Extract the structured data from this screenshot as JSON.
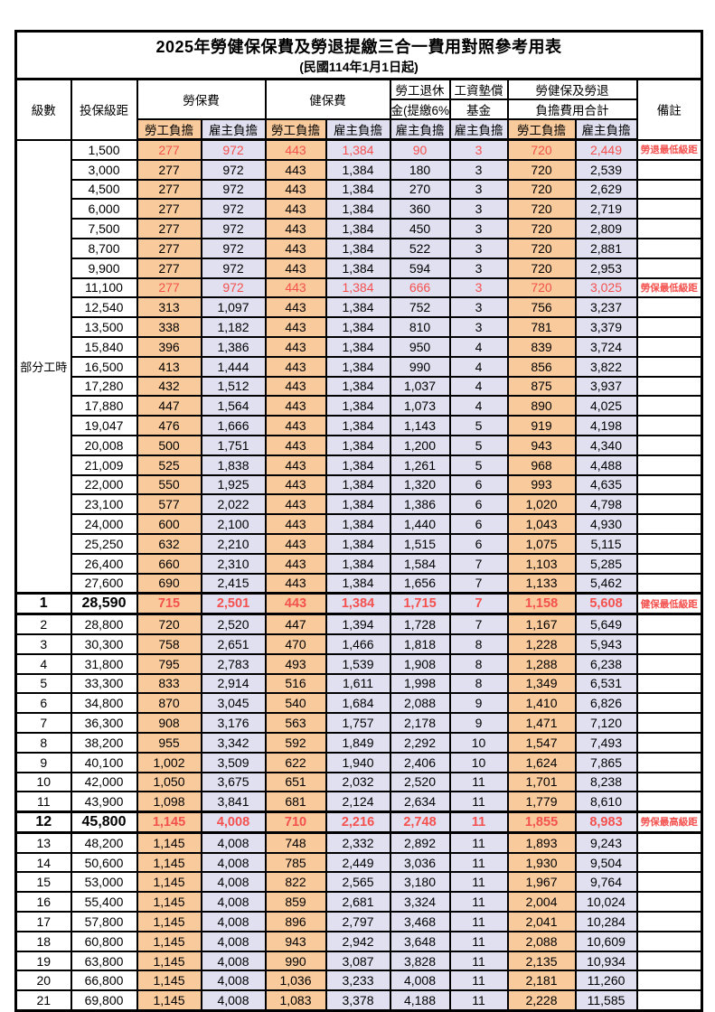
{
  "title": "2025年勞健保保費及勞退提繳三合一費用對照參考用表",
  "subtitle": "(民國114年1月1日起)",
  "header": {
    "level": "級數",
    "bracket": "投保級距",
    "labor_insurance": "勞保費",
    "health_insurance": "健保費",
    "pension_line1": "勞工退休",
    "pension_line2": "金(提繳6%)",
    "fund_line1": "工資墊償",
    "fund_line2": "基金",
    "total_line1": "勞健保及勞退",
    "total_line2": "負擔費用合計",
    "remark": "備註",
    "employee": "勞工負擔",
    "employer": "雇主負擔"
  },
  "part_time_label": "部分工時",
  "part_time_rowspan": 23,
  "colors": {
    "employee_column_bg": "#F8CA9C",
    "employer_column_bg": "#E1E0F1",
    "highlight_red": "#F4514E",
    "grid_border": "#000000"
  },
  "rows": [
    {
      "level": "",
      "bracket": "1,500",
      "li_emp": "277",
      "li_er": "972",
      "hi_emp": "443",
      "hi_er": "1,384",
      "pension": "90",
      "fund": "3",
      "tot_emp": "720",
      "tot_er": "2,449",
      "remark": "勞退最低級距",
      "style": "red"
    },
    {
      "level": "",
      "bracket": "3,000",
      "li_emp": "277",
      "li_er": "972",
      "hi_emp": "443",
      "hi_er": "1,384",
      "pension": "180",
      "fund": "3",
      "tot_emp": "720",
      "tot_er": "2,539",
      "remark": "",
      "style": ""
    },
    {
      "level": "",
      "bracket": "4,500",
      "li_emp": "277",
      "li_er": "972",
      "hi_emp": "443",
      "hi_er": "1,384",
      "pension": "270",
      "fund": "3",
      "tot_emp": "720",
      "tot_er": "2,629",
      "remark": "",
      "style": ""
    },
    {
      "level": "",
      "bracket": "6,000",
      "li_emp": "277",
      "li_er": "972",
      "hi_emp": "443",
      "hi_er": "1,384",
      "pension": "360",
      "fund": "3",
      "tot_emp": "720",
      "tot_er": "2,719",
      "remark": "",
      "style": ""
    },
    {
      "level": "",
      "bracket": "7,500",
      "li_emp": "277",
      "li_er": "972",
      "hi_emp": "443",
      "hi_er": "1,384",
      "pension": "450",
      "fund": "3",
      "tot_emp": "720",
      "tot_er": "2,809",
      "remark": "",
      "style": ""
    },
    {
      "level": "",
      "bracket": "8,700",
      "li_emp": "277",
      "li_er": "972",
      "hi_emp": "443",
      "hi_er": "1,384",
      "pension": "522",
      "fund": "3",
      "tot_emp": "720",
      "tot_er": "2,881",
      "remark": "",
      "style": ""
    },
    {
      "level": "",
      "bracket": "9,900",
      "li_emp": "277",
      "li_er": "972",
      "hi_emp": "443",
      "hi_er": "1,384",
      "pension": "594",
      "fund": "3",
      "tot_emp": "720",
      "tot_er": "2,953",
      "remark": "",
      "style": ""
    },
    {
      "level": "",
      "bracket": "11,100",
      "li_emp": "277",
      "li_er": "972",
      "hi_emp": "443",
      "hi_er": "1,384",
      "pension": "666",
      "fund": "3",
      "tot_emp": "720",
      "tot_er": "3,025",
      "remark": "勞保最低級距",
      "style": "red"
    },
    {
      "level": "",
      "bracket": "12,540",
      "li_emp": "313",
      "li_er": "1,097",
      "hi_emp": "443",
      "hi_er": "1,384",
      "pension": "752",
      "fund": "3",
      "tot_emp": "756",
      "tot_er": "3,237",
      "remark": "",
      "style": ""
    },
    {
      "level": "",
      "bracket": "13,500",
      "li_emp": "338",
      "li_er": "1,182",
      "hi_emp": "443",
      "hi_er": "1,384",
      "pension": "810",
      "fund": "3",
      "tot_emp": "781",
      "tot_er": "3,379",
      "remark": "",
      "style": ""
    },
    {
      "level": "",
      "bracket": "15,840",
      "li_emp": "396",
      "li_er": "1,386",
      "hi_emp": "443",
      "hi_er": "1,384",
      "pension": "950",
      "fund": "4",
      "tot_emp": "839",
      "tot_er": "3,724",
      "remark": "",
      "style": ""
    },
    {
      "level": "",
      "bracket": "16,500",
      "li_emp": "413",
      "li_er": "1,444",
      "hi_emp": "443",
      "hi_er": "1,384",
      "pension": "990",
      "fund": "4",
      "tot_emp": "856",
      "tot_er": "3,822",
      "remark": "",
      "style": ""
    },
    {
      "level": "",
      "bracket": "17,280",
      "li_emp": "432",
      "li_er": "1,512",
      "hi_emp": "443",
      "hi_er": "1,384",
      "pension": "1,037",
      "fund": "4",
      "tot_emp": "875",
      "tot_er": "3,937",
      "remark": "",
      "style": ""
    },
    {
      "level": "",
      "bracket": "17,880",
      "li_emp": "447",
      "li_er": "1,564",
      "hi_emp": "443",
      "hi_er": "1,384",
      "pension": "1,073",
      "fund": "4",
      "tot_emp": "890",
      "tot_er": "4,025",
      "remark": "",
      "style": ""
    },
    {
      "level": "",
      "bracket": "19,047",
      "li_emp": "476",
      "li_er": "1,666",
      "hi_emp": "443",
      "hi_er": "1,384",
      "pension": "1,143",
      "fund": "5",
      "tot_emp": "919",
      "tot_er": "4,198",
      "remark": "",
      "style": ""
    },
    {
      "level": "",
      "bracket": "20,008",
      "li_emp": "500",
      "li_er": "1,751",
      "hi_emp": "443",
      "hi_er": "1,384",
      "pension": "1,200",
      "fund": "5",
      "tot_emp": "943",
      "tot_er": "4,340",
      "remark": "",
      "style": ""
    },
    {
      "level": "",
      "bracket": "21,009",
      "li_emp": "525",
      "li_er": "1,838",
      "hi_emp": "443",
      "hi_er": "1,384",
      "pension": "1,261",
      "fund": "5",
      "tot_emp": "968",
      "tot_er": "4,488",
      "remark": "",
      "style": ""
    },
    {
      "level": "",
      "bracket": "22,000",
      "li_emp": "550",
      "li_er": "1,925",
      "hi_emp": "443",
      "hi_er": "1,384",
      "pension": "1,320",
      "fund": "6",
      "tot_emp": "993",
      "tot_er": "4,635",
      "remark": "",
      "style": ""
    },
    {
      "level": "",
      "bracket": "23,100",
      "li_emp": "577",
      "li_er": "2,022",
      "hi_emp": "443",
      "hi_er": "1,384",
      "pension": "1,386",
      "fund": "6",
      "tot_emp": "1,020",
      "tot_er": "4,798",
      "remark": "",
      "style": ""
    },
    {
      "level": "",
      "bracket": "24,000",
      "li_emp": "600",
      "li_er": "2,100",
      "hi_emp": "443",
      "hi_er": "1,384",
      "pension": "1,440",
      "fund": "6",
      "tot_emp": "1,043",
      "tot_er": "4,930",
      "remark": "",
      "style": ""
    },
    {
      "level": "",
      "bracket": "25,250",
      "li_emp": "632",
      "li_er": "2,210",
      "hi_emp": "443",
      "hi_er": "1,384",
      "pension": "1,515",
      "fund": "6",
      "tot_emp": "1,075",
      "tot_er": "5,115",
      "remark": "",
      "style": ""
    },
    {
      "level": "",
      "bracket": "26,400",
      "li_emp": "660",
      "li_er": "2,310",
      "hi_emp": "443",
      "hi_er": "1,384",
      "pension": "1,584",
      "fund": "7",
      "tot_emp": "1,103",
      "tot_er": "5,285",
      "remark": "",
      "style": ""
    },
    {
      "level": "",
      "bracket": "27,600",
      "li_emp": "690",
      "li_er": "2,415",
      "hi_emp": "443",
      "hi_er": "1,384",
      "pension": "1,656",
      "fund": "7",
      "tot_emp": "1,133",
      "tot_er": "5,462",
      "remark": "",
      "style": ""
    },
    {
      "level": "1",
      "bracket": "28,590",
      "li_emp": "715",
      "li_er": "2,501",
      "hi_emp": "443",
      "hi_er": "1,384",
      "pension": "1,715",
      "fund": "7",
      "tot_emp": "1,158",
      "tot_er": "5,608",
      "remark": "健保最低級距",
      "style": "redbold"
    },
    {
      "level": "2",
      "bracket": "28,800",
      "li_emp": "720",
      "li_er": "2,520",
      "hi_emp": "447",
      "hi_er": "1,394",
      "pension": "1,728",
      "fund": "7",
      "tot_emp": "1,167",
      "tot_er": "5,649",
      "remark": "",
      "style": ""
    },
    {
      "level": "3",
      "bracket": "30,300",
      "li_emp": "758",
      "li_er": "2,651",
      "hi_emp": "470",
      "hi_er": "1,466",
      "pension": "1,818",
      "fund": "8",
      "tot_emp": "1,228",
      "tot_er": "5,943",
      "remark": "",
      "style": ""
    },
    {
      "level": "4",
      "bracket": "31,800",
      "li_emp": "795",
      "li_er": "2,783",
      "hi_emp": "493",
      "hi_er": "1,539",
      "pension": "1,908",
      "fund": "8",
      "tot_emp": "1,288",
      "tot_er": "6,238",
      "remark": "",
      "style": ""
    },
    {
      "level": "5",
      "bracket": "33,300",
      "li_emp": "833",
      "li_er": "2,914",
      "hi_emp": "516",
      "hi_er": "1,611",
      "pension": "1,998",
      "fund": "8",
      "tot_emp": "1,349",
      "tot_er": "6,531",
      "remark": "",
      "style": ""
    },
    {
      "level": "6",
      "bracket": "34,800",
      "li_emp": "870",
      "li_er": "3,045",
      "hi_emp": "540",
      "hi_er": "1,684",
      "pension": "2,088",
      "fund": "9",
      "tot_emp": "1,410",
      "tot_er": "6,826",
      "remark": "",
      "style": ""
    },
    {
      "level": "7",
      "bracket": "36,300",
      "li_emp": "908",
      "li_er": "3,176",
      "hi_emp": "563",
      "hi_er": "1,757",
      "pension": "2,178",
      "fund": "9",
      "tot_emp": "1,471",
      "tot_er": "7,120",
      "remark": "",
      "style": ""
    },
    {
      "level": "8",
      "bracket": "38,200",
      "li_emp": "955",
      "li_er": "3,342",
      "hi_emp": "592",
      "hi_er": "1,849",
      "pension": "2,292",
      "fund": "10",
      "tot_emp": "1,547",
      "tot_er": "7,493",
      "remark": "",
      "style": ""
    },
    {
      "level": "9",
      "bracket": "40,100",
      "li_emp": "1,002",
      "li_er": "3,509",
      "hi_emp": "622",
      "hi_er": "1,940",
      "pension": "2,406",
      "fund": "10",
      "tot_emp": "1,624",
      "tot_er": "7,865",
      "remark": "",
      "style": ""
    },
    {
      "level": "10",
      "bracket": "42,000",
      "li_emp": "1,050",
      "li_er": "3,675",
      "hi_emp": "651",
      "hi_er": "2,032",
      "pension": "2,520",
      "fund": "11",
      "tot_emp": "1,701",
      "tot_er": "8,238",
      "remark": "",
      "style": ""
    },
    {
      "level": "11",
      "bracket": "43,900",
      "li_emp": "1,098",
      "li_er": "3,841",
      "hi_emp": "681",
      "hi_er": "2,124",
      "pension": "2,634",
      "fund": "11",
      "tot_emp": "1,779",
      "tot_er": "8,610",
      "remark": "",
      "style": ""
    },
    {
      "level": "12",
      "bracket": "45,800",
      "li_emp": "1,145",
      "li_er": "4,008",
      "hi_emp": "710",
      "hi_er": "2,216",
      "pension": "2,748",
      "fund": "11",
      "tot_emp": "1,855",
      "tot_er": "8,983",
      "remark": "勞保最高級距",
      "style": "redbold"
    },
    {
      "level": "13",
      "bracket": "48,200",
      "li_emp": "1,145",
      "li_er": "4,008",
      "hi_emp": "748",
      "hi_er": "2,332",
      "pension": "2,892",
      "fund": "11",
      "tot_emp": "1,893",
      "tot_er": "9,243",
      "remark": "",
      "style": ""
    },
    {
      "level": "14",
      "bracket": "50,600",
      "li_emp": "1,145",
      "li_er": "4,008",
      "hi_emp": "785",
      "hi_er": "2,449",
      "pension": "3,036",
      "fund": "11",
      "tot_emp": "1,930",
      "tot_er": "9,504",
      "remark": "",
      "style": ""
    },
    {
      "level": "15",
      "bracket": "53,000",
      "li_emp": "1,145",
      "li_er": "4,008",
      "hi_emp": "822",
      "hi_er": "2,565",
      "pension": "3,180",
      "fund": "11",
      "tot_emp": "1,967",
      "tot_er": "9,764",
      "remark": "",
      "style": ""
    },
    {
      "level": "16",
      "bracket": "55,400",
      "li_emp": "1,145",
      "li_er": "4,008",
      "hi_emp": "859",
      "hi_er": "2,681",
      "pension": "3,324",
      "fund": "11",
      "tot_emp": "2,004",
      "tot_er": "10,024",
      "remark": "",
      "style": ""
    },
    {
      "level": "17",
      "bracket": "57,800",
      "li_emp": "1,145",
      "li_er": "4,008",
      "hi_emp": "896",
      "hi_er": "2,797",
      "pension": "3,468",
      "fund": "11",
      "tot_emp": "2,041",
      "tot_er": "10,284",
      "remark": "",
      "style": ""
    },
    {
      "level": "18",
      "bracket": "60,800",
      "li_emp": "1,145",
      "li_er": "4,008",
      "hi_emp": "943",
      "hi_er": "2,942",
      "pension": "3,648",
      "fund": "11",
      "tot_emp": "2,088",
      "tot_er": "10,609",
      "remark": "",
      "style": ""
    },
    {
      "level": "19",
      "bracket": "63,800",
      "li_emp": "1,145",
      "li_er": "4,008",
      "hi_emp": "990",
      "hi_er": "3,087",
      "pension": "3,828",
      "fund": "11",
      "tot_emp": "2,135",
      "tot_er": "10,934",
      "remark": "",
      "style": ""
    },
    {
      "level": "20",
      "bracket": "66,800",
      "li_emp": "1,145",
      "li_er": "4,008",
      "hi_emp": "1,036",
      "hi_er": "3,233",
      "pension": "4,008",
      "fund": "11",
      "tot_emp": "2,181",
      "tot_er": "11,260",
      "remark": "",
      "style": ""
    },
    {
      "level": "21",
      "bracket": "69,800",
      "li_emp": "1,145",
      "li_er": "4,008",
      "hi_emp": "1,083",
      "hi_er": "3,378",
      "pension": "4,188",
      "fund": "11",
      "tot_emp": "2,228",
      "tot_er": "11,585",
      "remark": "",
      "style": ""
    }
  ]
}
